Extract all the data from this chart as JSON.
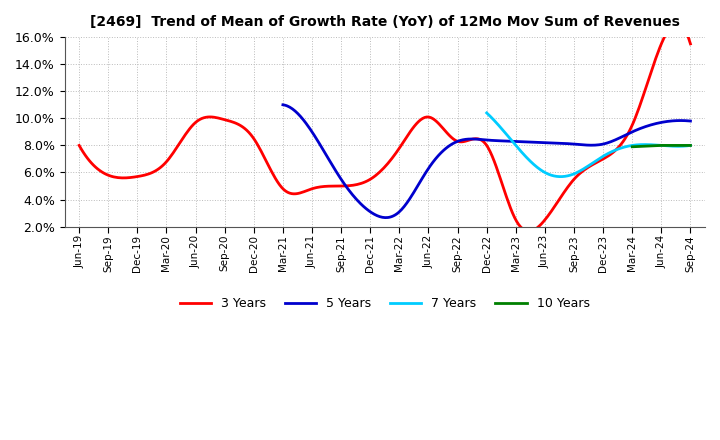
{
  "title": "[2469]  Trend of Mean of Growth Rate (YoY) of 12Mo Mov Sum of Revenues",
  "ylim": [
    0.02,
    0.16
  ],
  "yticks": [
    0.02,
    0.04,
    0.06,
    0.08,
    0.1,
    0.12,
    0.14,
    0.16
  ],
  "background_color": "#ffffff",
  "grid_color": "#aaaaaa",
  "xtick_labels": [
    "Jun-19",
    "Sep-19",
    "Dec-19",
    "Mar-20",
    "Jun-20",
    "Sep-20",
    "Dec-20",
    "Mar-21",
    "Jun-21",
    "Sep-21",
    "Dec-21",
    "Mar-22",
    "Jun-22",
    "Sep-22",
    "Dec-22",
    "Mar-23",
    "Jun-23",
    "Sep-23",
    "Dec-23",
    "Mar-24",
    "Jun-24",
    "Sep-24"
  ],
  "series": {
    "3 Years": {
      "color": "#ff0000",
      "x": [
        0,
        1,
        2,
        3,
        4,
        5,
        6,
        7,
        8,
        9,
        10,
        11,
        12,
        13,
        14,
        15,
        16,
        17,
        18,
        19,
        20,
        21
      ],
      "y": [
        0.08,
        0.058,
        0.057,
        0.068,
        0.097,
        0.099,
        0.085,
        0.048,
        0.048,
        0.05,
        0.055,
        0.078,
        0.101,
        0.083,
        0.08,
        0.025,
        0.025,
        0.055,
        0.07,
        0.095,
        0.155,
        0.155
      ]
    },
    "5 Years": {
      "color": "#0000cd",
      "x": [
        7,
        8,
        9,
        10,
        11,
        12,
        13,
        14,
        15,
        16,
        17,
        18,
        19,
        20,
        21
      ],
      "y": [
        0.11,
        0.09,
        0.055,
        0.031,
        0.031,
        0.063,
        0.083,
        0.084,
        0.083,
        0.082,
        0.081,
        0.081,
        0.09,
        0.097,
        0.098
      ]
    },
    "7 Years": {
      "color": "#00ccff",
      "x": [
        14,
        15,
        16,
        17,
        18,
        19,
        20,
        21
      ],
      "y": [
        0.104,
        0.08,
        0.06,
        0.059,
        0.072,
        0.08,
        0.08,
        0.08
      ]
    },
    "10 Years": {
      "color": "#008000",
      "x": [
        19,
        20,
        21
      ],
      "y": [
        0.079,
        0.08,
        0.08
      ]
    }
  },
  "legend_labels": [
    "3 Years",
    "5 Years",
    "7 Years",
    "10 Years"
  ],
  "legend_colors": [
    "#ff0000",
    "#0000cd",
    "#00ccff",
    "#008000"
  ]
}
